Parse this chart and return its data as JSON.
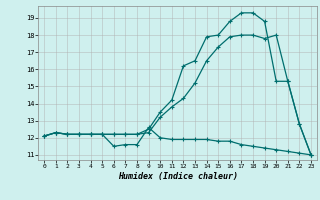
{
  "xlabel": "Humidex (Indice chaleur)",
  "bg_color": "#cff0ee",
  "grid_color": "#b0b0b0",
  "line_color": "#006e6e",
  "xlim": [
    -0.5,
    23.5
  ],
  "ylim": [
    10.7,
    19.7
  ],
  "yticks": [
    11,
    12,
    13,
    14,
    15,
    16,
    17,
    18,
    19
  ],
  "xticks": [
    0,
    1,
    2,
    3,
    4,
    5,
    6,
    7,
    8,
    9,
    10,
    11,
    12,
    13,
    14,
    15,
    16,
    17,
    18,
    19,
    20,
    21,
    22,
    23
  ],
  "series1_x": [
    0,
    1,
    2,
    3,
    4,
    5,
    6,
    7,
    8,
    9,
    10,
    11,
    12,
    13,
    14,
    15,
    16,
    17,
    18,
    19,
    20,
    21,
    22,
    23
  ],
  "series1_y": [
    12.1,
    12.3,
    12.2,
    12.2,
    12.2,
    12.2,
    11.5,
    11.6,
    11.6,
    12.6,
    12.0,
    11.9,
    11.9,
    11.9,
    11.9,
    11.8,
    11.8,
    11.6,
    11.5,
    11.4,
    11.3,
    11.2,
    11.1,
    11.0
  ],
  "series2_x": [
    0,
    1,
    2,
    3,
    4,
    5,
    6,
    7,
    8,
    9,
    10,
    11,
    12,
    13,
    14,
    15,
    16,
    17,
    18,
    19,
    20,
    21,
    22,
    23
  ],
  "series2_y": [
    12.1,
    12.3,
    12.2,
    12.2,
    12.2,
    12.2,
    12.2,
    12.2,
    12.2,
    12.3,
    13.2,
    13.8,
    14.3,
    15.2,
    16.5,
    17.3,
    17.9,
    18.0,
    18.0,
    17.8,
    18.0,
    15.3,
    12.8,
    11.0
  ],
  "series3_x": [
    0,
    1,
    2,
    3,
    4,
    5,
    6,
    7,
    8,
    9,
    10,
    11,
    12,
    13,
    14,
    15,
    16,
    17,
    18,
    19,
    20,
    21,
    22,
    23
  ],
  "series3_y": [
    12.1,
    12.3,
    12.2,
    12.2,
    12.2,
    12.2,
    12.2,
    12.2,
    12.2,
    12.5,
    13.5,
    14.2,
    16.2,
    16.5,
    17.9,
    18.0,
    18.8,
    19.3,
    19.3,
    18.8,
    15.3,
    15.3,
    12.8,
    11.0
  ]
}
